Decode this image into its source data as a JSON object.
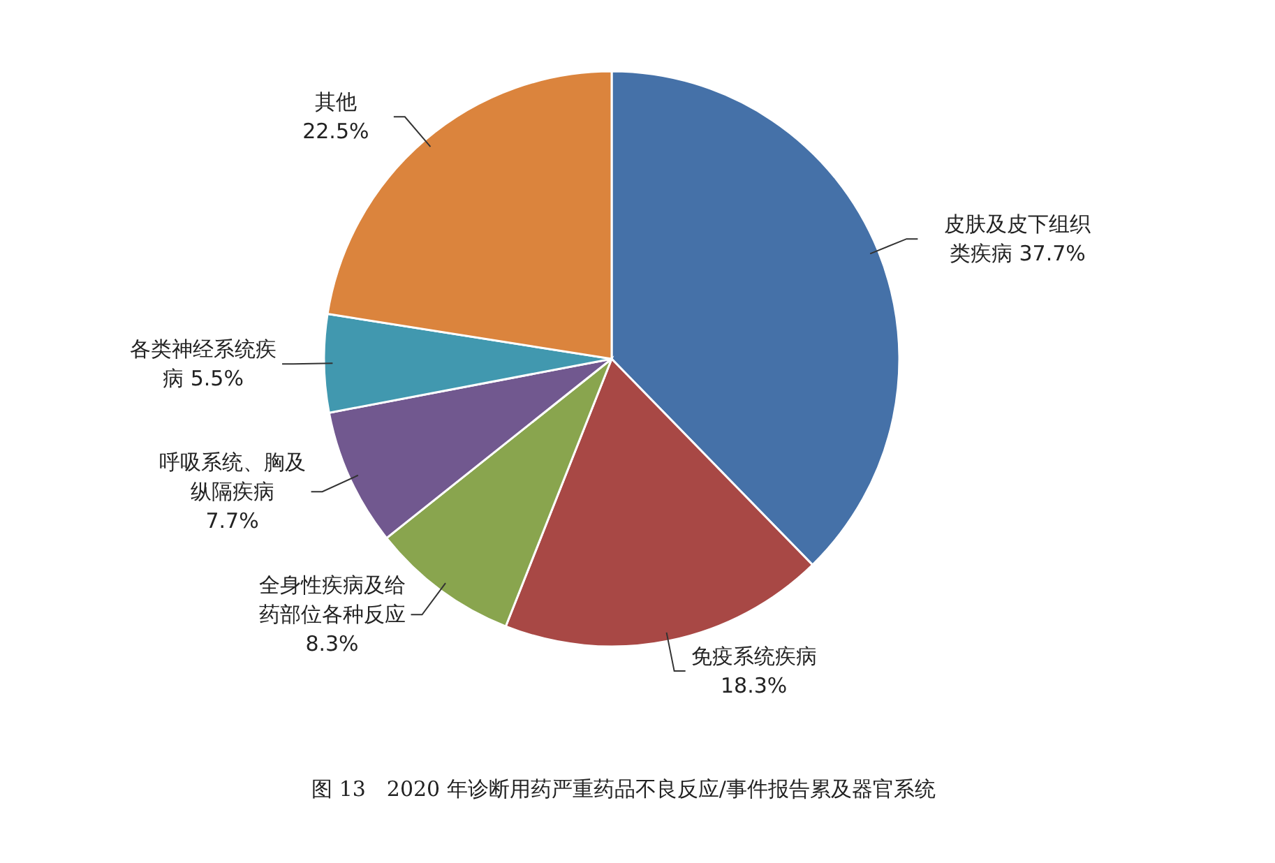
{
  "chart_data": {
    "type": "pie",
    "categories": [
      "皮肤及皮下组织类疾病",
      "免疫系统疾病",
      "全身性疾病及给药部位各种反应",
      "呼吸系统、胸及纵隔疾病",
      "各类神经系统疾病",
      "其他"
    ],
    "value_labels": [
      "37.7%",
      "18.3%",
      "8.3%",
      "7.7%",
      "5.5%",
      "22.5%"
    ],
    "values": [
      37.7,
      18.3,
      8.3,
      7.7,
      5.5,
      22.5
    ],
    "colors": [
      "#4571a8",
      "#a84845",
      "#89a54e",
      "#71588f",
      "#4198af",
      "#db843d"
    ],
    "annotations": [
      "图 13　2020 年诊断用药严重药品不良反应/事件报告累及器官系统"
    ]
  }
}
